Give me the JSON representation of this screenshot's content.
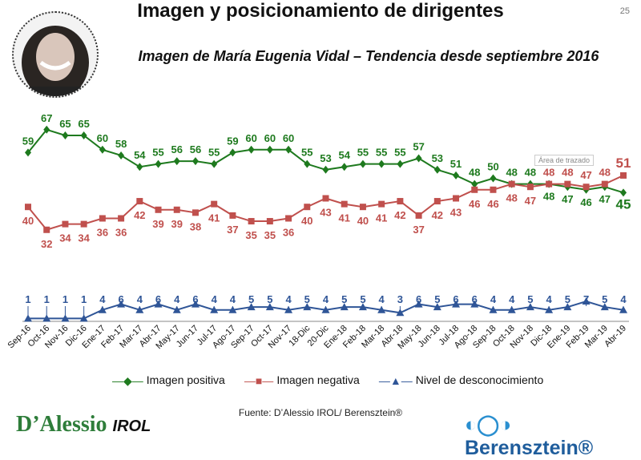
{
  "header": {
    "title": "Imagen y posicionamiento de dirigentes",
    "page_number": "25",
    "subtitle": "Imagen de María Eugenia Vidal – Tendencia desde septiembre 2016"
  },
  "tooltip": "Área de trazado",
  "chart_data": {
    "type": "line",
    "title": "Imagen de María Eugenia Vidal – Tendencia desde septiembre 2016",
    "categories": [
      "Sep-16",
      "Oct-16",
      "Nov-16",
      "Dic-16",
      "Ene-17",
      "Feb-17",
      "Mar-17",
      "Abr-17",
      "May-17",
      "Jun-17",
      "Jul-17",
      "Ago-17",
      "Sep-17",
      "Oct-17",
      "Nov-17",
      "18-Dic",
      "20-Dic",
      "Ene-18",
      "Feb-18",
      "Mar-18",
      "Abr-18",
      "May-18",
      "Jun-18",
      "Jul-18",
      "Ago-18",
      "Sep-18",
      "Oct-18",
      "Nov-18",
      "Dic-18",
      "Ene-19",
      "Feb-19",
      "Mar-19",
      "Abr-19"
    ],
    "series": [
      {
        "name": "Imagen positiva",
        "color": "#1e7a1e",
        "marker": "diamond",
        "values": [
          59,
          67,
          65,
          65,
          60,
          58,
          54,
          55,
          56,
          56,
          55,
          59,
          60,
          60,
          60,
          55,
          53,
          54,
          55,
          55,
          55,
          57,
          53,
          51,
          48,
          50,
          48,
          48,
          48,
          47,
          46,
          47,
          45
        ]
      },
      {
        "name": "Imagen negativa",
        "color": "#c0504d",
        "marker": "square",
        "values": [
          40,
          32,
          34,
          34,
          36,
          36,
          42,
          39,
          39,
          38,
          41,
          37,
          35,
          35,
          36,
          40,
          43,
          41,
          40,
          41,
          42,
          37,
          42,
          43,
          46,
          46,
          48,
          47,
          48,
          48,
          47,
          48,
          51
        ]
      },
      {
        "name": "Nivel de desconocimiento",
        "color": "#2f5597",
        "marker": "triangle",
        "values": [
          1,
          1,
          1,
          1,
          4,
          6,
          4,
          6,
          4,
          6,
          4,
          4,
          5,
          5,
          4,
          5,
          4,
          5,
          5,
          4,
          3,
          6,
          5,
          6,
          6,
          4,
          4,
          5,
          4,
          5,
          7,
          5,
          4
        ]
      }
    ],
    "grid": false,
    "legend": "bottom",
    "data_labels": true
  },
  "footer": {
    "source": "Fuente: D’Alessio IROL/ Berensztein®",
    "logo_left": "D’Alessio IROL",
    "logo_right": "Berensztein®"
  }
}
